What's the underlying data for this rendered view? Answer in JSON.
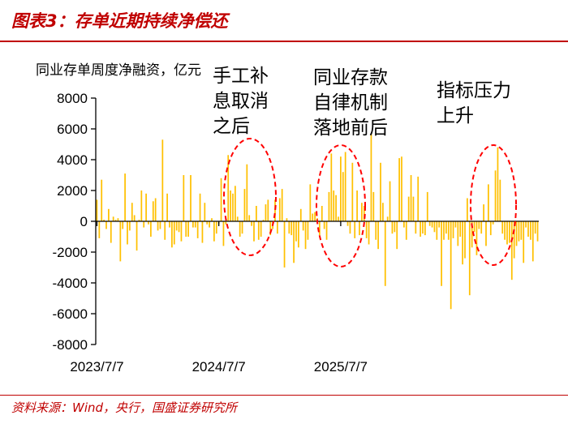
{
  "header": {
    "title": "图表3：存单近期持续净偿还"
  },
  "footer": {
    "source": "资料来源：Wind，央行，国盛证券研究所"
  },
  "colors": {
    "bar": "#FFC000",
    "title": "#C00000",
    "annotation_ellipse": "#FF0000",
    "axis": "#000000"
  },
  "chart_data": {
    "type": "bar",
    "ylabel": "同业存单周度净融资，亿元",
    "ylim": [
      -8000,
      8000
    ],
    "yticks": [
      "8000",
      "6000",
      "4000",
      "2000",
      "0",
      "-2000",
      "-4000",
      "-6000",
      "-8000"
    ],
    "xtick_labels": [
      "2023/7/7",
      "2024/7/7",
      "2025/7/7"
    ],
    "xtick_index": [
      0,
      52,
      104
    ],
    "annotations": [
      {
        "text_lines": [
          "手工补",
          "息取消",
          "之后"
        ]
      },
      {
        "text_lines": [
          "同业存款",
          "自律机制",
          "落地前后"
        ]
      },
      {
        "text_lines": [
          "指标压力",
          "上升"
        ]
      }
    ],
    "series": [
      {
        "values": [
          1400,
          -1100,
          2700,
          100,
          -500,
          800,
          -1400,
          300,
          100,
          200,
          -2600,
          -500,
          3100,
          -1500,
          -600,
          1200,
          400,
          -1900,
          100,
          2000,
          -400,
          1800,
          -200,
          -1000,
          1300,
          1500,
          -600,
          -500,
          5300,
          -1200,
          1800,
          -400,
          -1700,
          -1500,
          -600,
          -700,
          -1300,
          3000,
          -1000,
          -1000,
          3000,
          -400,
          -400,
          -1100,
          1800,
          -1400,
          1200,
          -200,
          -400,
          200,
          -1300,
          -800,
          -200,
          2800,
          -1600,
          -200,
          4300,
          2000,
          1800,
          2300,
          300,
          -1000,
          -800,
          2100,
          3700,
          400,
          -300,
          -1300,
          1000,
          -1200,
          -1000,
          100,
          1100,
          1400,
          -900,
          -500,
          1400,
          -800,
          1500,
          2100,
          -3000,
          200,
          -800,
          -900,
          -2700,
          -1300,
          -1700,
          800,
          -600,
          -1800,
          -1200,
          2400,
          500,
          600,
          200,
          -900,
          1000,
          -500,
          -1200,
          1900,
          4400,
          2000,
          1700,
          300,
          4200,
          3200,
          4500,
          -300,
          -800,
          3800,
          -1100,
          2000,
          -900,
          1200,
          1000,
          -1100,
          -1500,
          5700,
          1900,
          -1200,
          -1800,
          3800,
          1200,
          -4200,
          300,
          2600,
          -800,
          -700,
          -1800,
          4100,
          4200,
          -400,
          -1200,
          1600,
          3000,
          1600,
          -800,
          2900,
          -1000,
          -800,
          -900,
          1900,
          -300,
          -400,
          -700,
          -1200,
          -400,
          -4200,
          -1200,
          -800,
          -1200,
          -5700,
          -1100,
          -400,
          -1600,
          -1000,
          -2800,
          -2400,
          1500,
          -4800,
          -1700,
          -700,
          -2200,
          -500,
          -800,
          1100,
          -1600,
          2400,
          -900,
          -200,
          3300,
          4800,
          2700,
          -800,
          -1200,
          -1500,
          -1400,
          -3800,
          -2400,
          -1600,
          -1300,
          -1200,
          -2700,
          -400,
          -1000,
          -1200,
          -2600,
          -800,
          -1300
        ]
      }
    ]
  }
}
